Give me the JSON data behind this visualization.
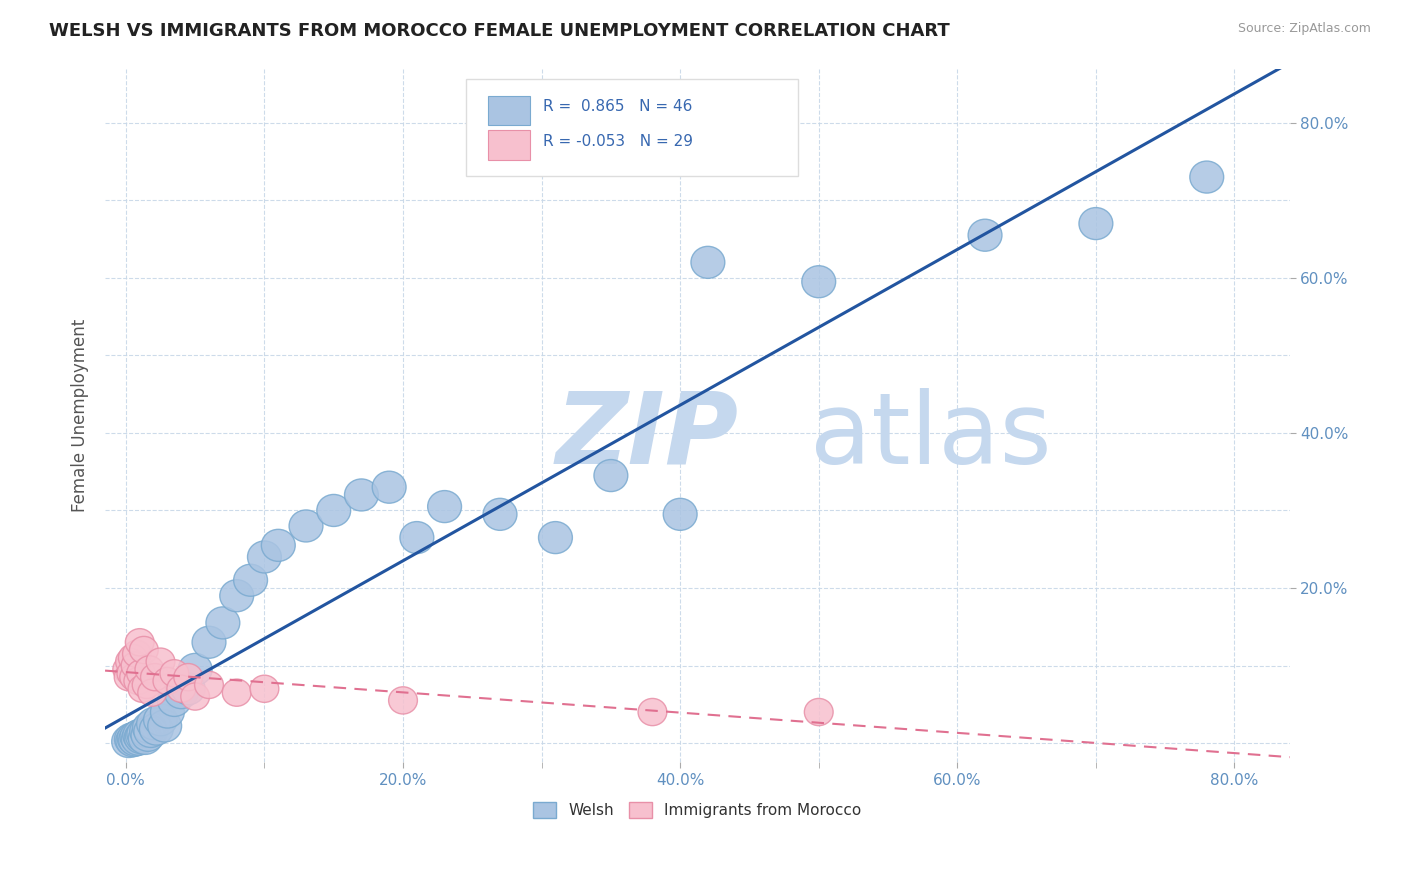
{
  "title": "WELSH VS IMMIGRANTS FROM MOROCCO FEMALE UNEMPLOYMENT CORRELATION CHART",
  "source": "Source: ZipAtlas.com",
  "ylabel": "Female Unemployment",
  "welsh_R": 0.865,
  "welsh_N": 46,
  "morocco_R": -0.053,
  "morocco_N": 29,
  "welsh_color": "#aac4e2",
  "welsh_edge_color": "#7aaad0",
  "welsh_line_color": "#2255a0",
  "morocco_color": "#f7c0ce",
  "morocco_edge_color": "#e890a8",
  "morocco_line_color": "#e07090",
  "watermark_zip_color": "#c5d8ee",
  "watermark_atlas_color": "#c5d8ee",
  "legend_R_color": "#3868b0",
  "background_color": "#ffffff",
  "grid_color": "#c8d8e8",
  "tick_color": "#6090c0",
  "welsh_x": [
    0.002,
    0.004,
    0.005,
    0.006,
    0.007,
    0.008,
    0.009,
    0.01,
    0.011,
    0.012,
    0.013,
    0.014,
    0.015,
    0.016,
    0.017,
    0.018,
    0.02,
    0.022,
    0.025,
    0.028,
    0.03,
    0.035,
    0.04,
    0.045,
    0.05,
    0.06,
    0.07,
    0.08,
    0.09,
    0.1,
    0.11,
    0.13,
    0.15,
    0.17,
    0.19,
    0.21,
    0.23,
    0.27,
    0.31,
    0.35,
    0.4,
    0.42,
    0.5,
    0.62,
    0.7,
    0.78
  ],
  "welsh_y": [
    0.002,
    0.005,
    0.003,
    0.006,
    0.004,
    0.008,
    0.005,
    0.01,
    0.007,
    0.009,
    0.012,
    0.006,
    0.015,
    0.01,
    0.02,
    0.015,
    0.025,
    0.018,
    0.03,
    0.022,
    0.04,
    0.055,
    0.065,
    0.07,
    0.095,
    0.13,
    0.155,
    0.19,
    0.21,
    0.24,
    0.255,
    0.28,
    0.3,
    0.32,
    0.33,
    0.265,
    0.305,
    0.295,
    0.265,
    0.345,
    0.295,
    0.62,
    0.595,
    0.655,
    0.67,
    0.73
  ],
  "morocco_x": [
    0.001,
    0.002,
    0.003,
    0.004,
    0.005,
    0.006,
    0.007,
    0.008,
    0.009,
    0.01,
    0.011,
    0.012,
    0.013,
    0.015,
    0.017,
    0.019,
    0.021,
    0.025,
    0.03,
    0.035,
    0.04,
    0.045,
    0.05,
    0.06,
    0.08,
    0.1,
    0.2,
    0.38,
    0.5
  ],
  "morocco_y": [
    0.095,
    0.085,
    0.105,
    0.09,
    0.11,
    0.085,
    0.1,
    0.115,
    0.08,
    0.13,
    0.09,
    0.07,
    0.12,
    0.075,
    0.095,
    0.065,
    0.085,
    0.105,
    0.08,
    0.09,
    0.07,
    0.085,
    0.06,
    0.075,
    0.065,
    0.07,
    0.055,
    0.04,
    0.04
  ],
  "xlim_min": -0.015,
  "xlim_max": 0.84,
  "ylim_min": -0.025,
  "ylim_max": 0.87
}
